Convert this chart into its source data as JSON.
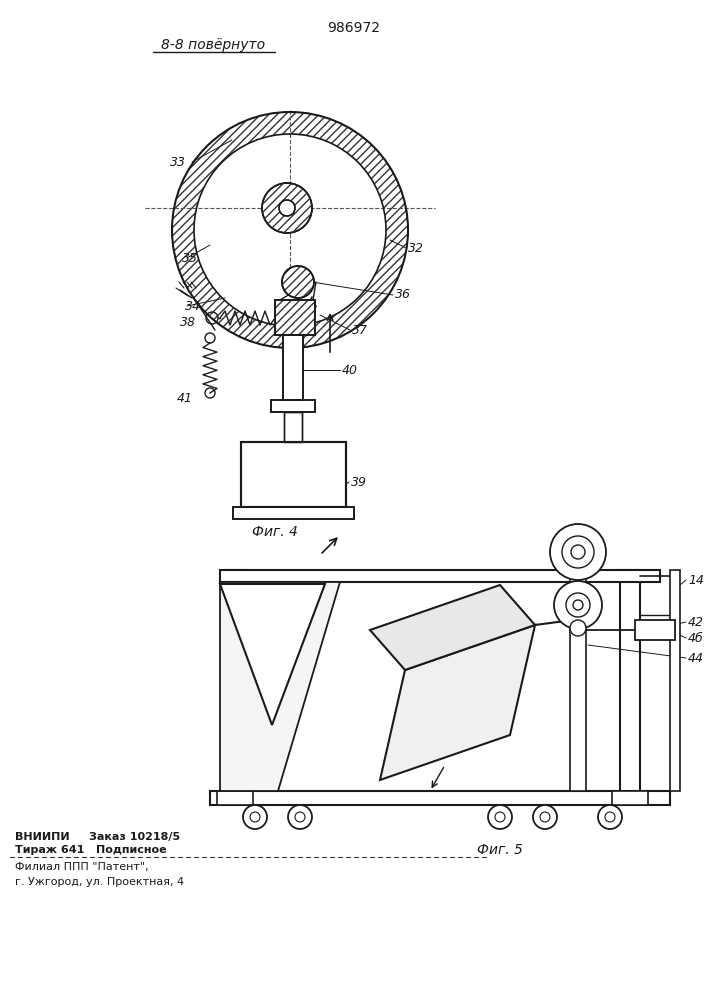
{
  "patent_number": "986972",
  "section_label": "8-8 повёрнуто",
  "fig4_label": "Фиг. 4",
  "fig5_label": "Фиг. 5",
  "footer_line1": "ВНИИПИ     Заказ 10218/5",
  "footer_line2": "Тираж 641   Подписное",
  "footer_line3": "Филиал ППП \"Патент\",",
  "footer_line4": "г. Ужгород, ул. Проектная, 4",
  "bg_color": "#ffffff",
  "line_color": "#1a1a1a"
}
